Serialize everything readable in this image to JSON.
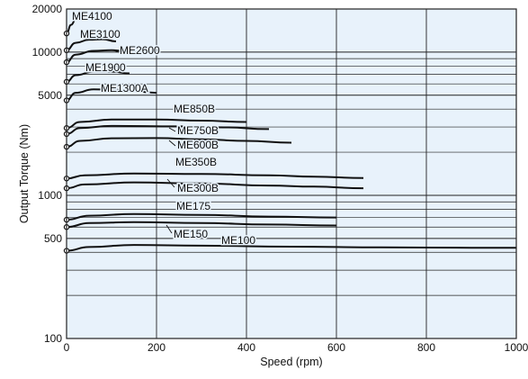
{
  "chart_data": {
    "type": "line",
    "title": "",
    "xlabel": "Speed (rpm)",
    "ylabel": "Output Torque (Nm)",
    "xlim": [
      0,
      1000
    ],
    "ylim": [
      100,
      20000
    ],
    "y_scale": "log",
    "grid": true,
    "plot_background": "#e8f2fb",
    "line_color": "#111111",
    "x_ticks": [
      {
        "value": 0,
        "label": "0"
      },
      {
        "value": 200,
        "label": "200"
      },
      {
        "value": 400,
        "label": "400"
      },
      {
        "value": 600,
        "label": "600"
      },
      {
        "value": 800,
        "label": "800"
      },
      {
        "value": 1000,
        "label": "1000"
      }
    ],
    "y_ticks": [
      {
        "value": 100,
        "label": "100"
      },
      {
        "value": 500,
        "label": "500"
      },
      {
        "value": 1000,
        "label": "1000"
      },
      {
        "value": 5000,
        "label": "5000"
      },
      {
        "value": 10000,
        "label": "10000"
      },
      {
        "value": 20000,
        "label": "20000"
      }
    ],
    "series": [
      {
        "name": "ME4100",
        "points": [
          [
            0,
            13500
          ],
          [
            10,
            15500
          ],
          [
            20,
            16800
          ],
          [
            35,
            17400
          ]
        ]
      },
      {
        "name": "ME3100",
        "points": [
          [
            0,
            10300
          ],
          [
            20,
            11600
          ],
          [
            50,
            12200
          ],
          [
            80,
            12300
          ],
          [
            110,
            11900
          ]
        ]
      },
      {
        "name": "ME2600",
        "points": [
          [
            0,
            8500
          ],
          [
            20,
            9600
          ],
          [
            60,
            10200
          ],
          [
            100,
            10300
          ],
          [
            150,
            10000
          ]
        ]
      },
      {
        "name": "ME1900",
        "points": [
          [
            0,
            6200
          ],
          [
            20,
            6900
          ],
          [
            60,
            7300
          ],
          [
            100,
            7300
          ],
          [
            140,
            7100
          ]
        ]
      },
      {
        "name": "ME1300A",
        "points": [
          [
            0,
            4600
          ],
          [
            20,
            5200
          ],
          [
            60,
            5500
          ],
          [
            120,
            5450
          ],
          [
            200,
            5200
          ]
        ]
      },
      {
        "name": "ME850B",
        "points": [
          [
            0,
            2950
          ],
          [
            30,
            3250
          ],
          [
            100,
            3380
          ],
          [
            200,
            3380
          ],
          [
            300,
            3320
          ],
          [
            400,
            3250
          ]
        ]
      },
      {
        "name": "ME750B",
        "points": [
          [
            0,
            2680
          ],
          [
            30,
            2950
          ],
          [
            100,
            3050
          ],
          [
            250,
            3030
          ],
          [
            350,
            2980
          ],
          [
            450,
            2900
          ]
        ]
      },
      {
        "name": "ME600B",
        "points": [
          [
            0,
            2180
          ],
          [
            30,
            2400
          ],
          [
            100,
            2500
          ],
          [
            200,
            2510
          ],
          [
            300,
            2460
          ],
          [
            400,
            2400
          ],
          [
            500,
            2330
          ]
        ]
      },
      {
        "name": "ME350B",
        "points": [
          [
            0,
            1310
          ],
          [
            40,
            1380
          ],
          [
            150,
            1420
          ],
          [
            300,
            1410
          ],
          [
            450,
            1380
          ],
          [
            550,
            1350
          ],
          [
            660,
            1320
          ]
        ]
      },
      {
        "name": "ME300B",
        "points": [
          [
            0,
            1120
          ],
          [
            40,
            1190
          ],
          [
            150,
            1230
          ],
          [
            300,
            1210
          ],
          [
            450,
            1170
          ],
          [
            550,
            1150
          ],
          [
            660,
            1120
          ]
        ]
      },
      {
        "name": "ME175",
        "points": [
          [
            0,
            675
          ],
          [
            50,
            720
          ],
          [
            150,
            740
          ],
          [
            300,
            730
          ],
          [
            450,
            710
          ],
          [
            600,
            700
          ]
        ]
      },
      {
        "name": "ME150",
        "points": [
          [
            0,
            600
          ],
          [
            50,
            640
          ],
          [
            150,
            650
          ],
          [
            300,
            640
          ],
          [
            450,
            625
          ],
          [
            600,
            615
          ]
        ]
      },
      {
        "name": "ME100",
        "points": [
          [
            0,
            410
          ],
          [
            50,
            435
          ],
          [
            150,
            450
          ],
          [
            300,
            445
          ],
          [
            500,
            438
          ],
          [
            700,
            433
          ],
          [
            900,
            430
          ],
          [
            1000,
            430
          ]
        ]
      }
    ],
    "annotations": [
      {
        "series": "ME4100",
        "text": "ME4100"
      },
      {
        "series": "ME3100",
        "text": "ME3100"
      },
      {
        "series": "ME2600",
        "text": "ME2600"
      },
      {
        "series": "ME1900",
        "text": "ME1900"
      },
      {
        "series": "ME1300A",
        "text": "ME1300A"
      },
      {
        "series": "ME850B",
        "text": "ME850B"
      },
      {
        "series": "ME750B",
        "text": "ME750B"
      },
      {
        "series": "ME600B",
        "text": "ME600B"
      },
      {
        "series": "ME350B",
        "text": "ME350B"
      },
      {
        "series": "ME300B",
        "text": "ME300B"
      },
      {
        "series": "ME175",
        "text": "ME175"
      },
      {
        "series": "ME150",
        "text": "ME150"
      },
      {
        "series": "ME100",
        "text": "ME100"
      }
    ]
  }
}
